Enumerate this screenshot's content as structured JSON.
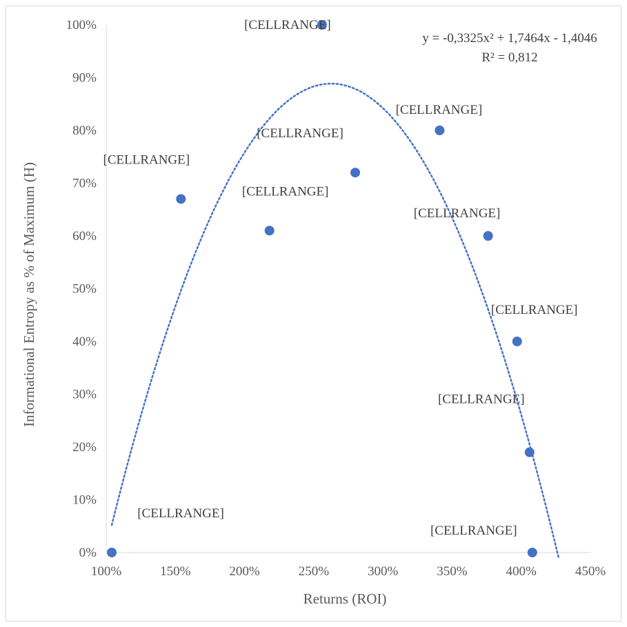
{
  "chart_data": {
    "type": "scatter",
    "xlabel": "Returns (ROI)",
    "ylabel": "Informational Entropy as % of Maximum (H)",
    "xlim": [
      1.0,
      4.5
    ],
    "ylim": [
      0,
      1.0
    ],
    "x_ticks": [
      1.0,
      1.5,
      2.0,
      2.5,
      3.0,
      3.5,
      4.0,
      4.5
    ],
    "x_tick_labels": [
      "100%",
      "150%",
      "200%",
      "250%",
      "300%",
      "350%",
      "400%",
      "450%"
    ],
    "y_ticks": [
      0,
      0.1,
      0.2,
      0.3,
      0.4,
      0.5,
      0.6,
      0.7,
      0.8,
      0.9,
      1.0
    ],
    "y_tick_labels": [
      "0%",
      "10%",
      "20%",
      "30%",
      "40%",
      "50%",
      "60%",
      "70%",
      "80%",
      "90%",
      "100%"
    ],
    "grid": false,
    "marker_color": "#4472C4",
    "trendline_color": "#4472C4",
    "points": [
      {
        "x": 1.04,
        "y": 0.0,
        "label": "[CELLRANGE]"
      },
      {
        "x": 1.54,
        "y": 0.67,
        "label": "[CELLRANGE]"
      },
      {
        "x": 2.18,
        "y": 0.61,
        "label": "[CELLRANGE]"
      },
      {
        "x": 2.56,
        "y": 1.0,
        "label": "[CELLRANGE]"
      },
      {
        "x": 2.8,
        "y": 0.72,
        "label": "[CELLRANGE]"
      },
      {
        "x": 3.41,
        "y": 0.8,
        "label": "[CELLRANGE]"
      },
      {
        "x": 3.76,
        "y": 0.6,
        "label": "[CELLRANGE]"
      },
      {
        "x": 3.97,
        "y": 0.4,
        "label": "[CELLRANGE]"
      },
      {
        "x": 4.06,
        "y": 0.19,
        "label": "[CELLRANGE]"
      },
      {
        "x": 4.08,
        "y": 0.0,
        "label": "[CELLRANGE]"
      }
    ],
    "trendline": {
      "type": "polynomial-2",
      "coefficients": [
        -0.3325,
        1.7464,
        -1.4046
      ],
      "x_range": [
        1.04,
        4.27
      ],
      "equation": "y = -0,3325x² + 1,7464x - 1,4046",
      "r_squared": "R² = 0,812"
    }
  }
}
